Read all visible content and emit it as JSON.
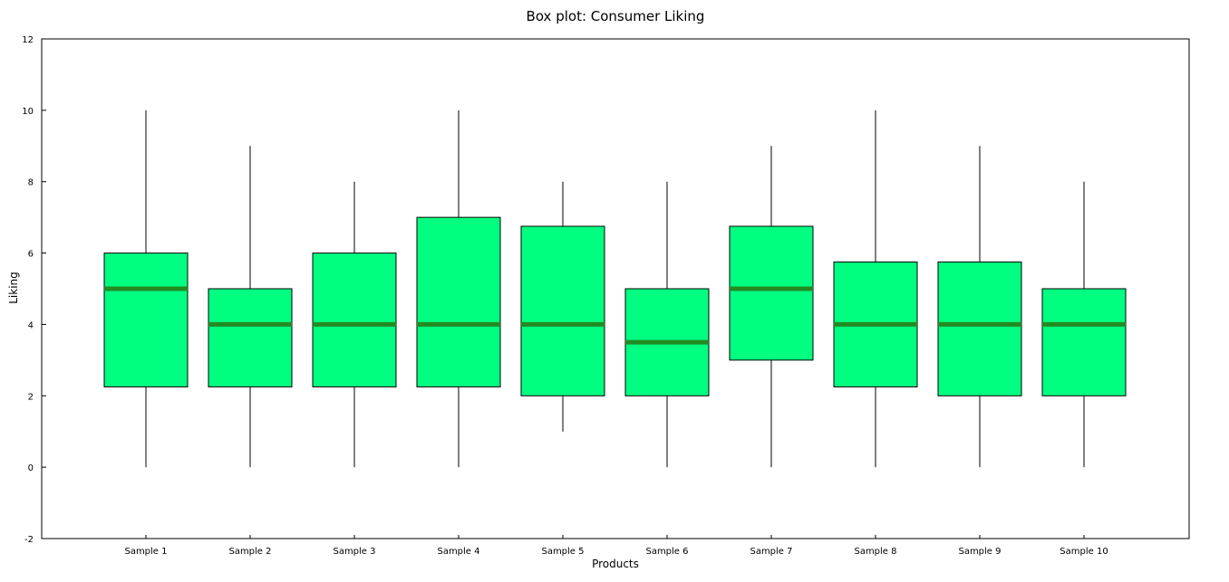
{
  "chart_data": {
    "type": "boxplot",
    "title": "Box plot: Consumer Liking",
    "xlabel": "Products",
    "ylabel": "Liking",
    "ylim": [
      -2,
      12
    ],
    "yticks": [
      -2,
      0,
      2,
      4,
      6,
      8,
      10,
      12
    ],
    "grid": false,
    "categories": [
      "Sample 1",
      "Sample 2",
      "Sample 3",
      "Sample 4",
      "Sample 5",
      "Sample 6",
      "Sample 7",
      "Sample 8",
      "Sample 9",
      "Sample 10"
    ],
    "boxes": [
      {
        "min": 0,
        "q1": 2.25,
        "median": 5,
        "q3": 6,
        "max": 10
      },
      {
        "min": 0,
        "q1": 2.25,
        "median": 4,
        "q3": 5,
        "max": 9
      },
      {
        "min": 0,
        "q1": 2.25,
        "median": 4,
        "q3": 6,
        "max": 8
      },
      {
        "min": 0,
        "q1": 2.25,
        "median": 4,
        "q3": 7,
        "max": 10
      },
      {
        "min": 1,
        "q1": 2,
        "median": 4,
        "q3": 6.75,
        "max": 8
      },
      {
        "min": 0,
        "q1": 2,
        "median": 3.5,
        "q3": 5,
        "max": 8
      },
      {
        "min": 0,
        "q1": 3,
        "median": 5,
        "q3": 6.75,
        "max": 9
      },
      {
        "min": 0,
        "q1": 2.25,
        "median": 4,
        "q3": 5.75,
        "max": 10
      },
      {
        "min": 0,
        "q1": 2,
        "median": 4,
        "q3": 5.75,
        "max": 9
      },
      {
        "min": 0,
        "q1": 2,
        "median": 4,
        "q3": 5,
        "max": 8
      }
    ],
    "colors": {
      "box_fill": "#00ff80",
      "median": "#228b22",
      "line": "#000000"
    }
  }
}
